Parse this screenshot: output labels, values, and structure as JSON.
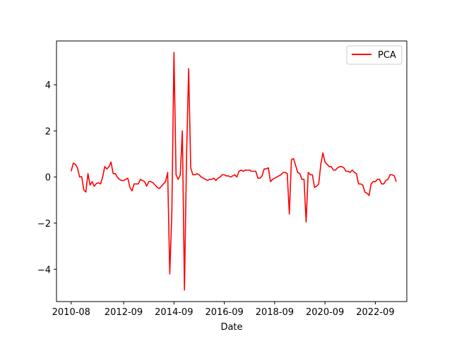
{
  "chart_data": {
    "type": "line",
    "title": "",
    "xlabel": "Date",
    "ylabel": "",
    "x_ticks": [
      "2010-08",
      "2012-09",
      "2014-09",
      "2016-09",
      "2018-09",
      "2020-09",
      "2022-09"
    ],
    "y_ticks": [
      "−4",
      "−2",
      "0",
      "2",
      "4"
    ],
    "y_tick_values": [
      -4,
      -2,
      0,
      2,
      4
    ],
    "xlim": [
      "2010-01",
      "2023-12"
    ],
    "ylim": [
      -5.4,
      5.9
    ],
    "grid": false,
    "legend_position": "top-right",
    "series": [
      {
        "name": "PCA",
        "color": "#ff0000",
        "points": [
          [
            "2010-08",
            0.25
          ],
          [
            "2010-09",
            0.6
          ],
          [
            "2010-10",
            0.55
          ],
          [
            "2010-11",
            0.4
          ],
          [
            "2010-12",
            0.0
          ],
          [
            "2011-01",
            0.02
          ],
          [
            "2011-02",
            -0.55
          ],
          [
            "2011-03",
            -0.65
          ],
          [
            "2011-04",
            0.15
          ],
          [
            "2011-05",
            -0.35
          ],
          [
            "2011-06",
            -0.2
          ],
          [
            "2011-07",
            -0.4
          ],
          [
            "2011-08",
            -0.28
          ],
          [
            "2011-09",
            -0.25
          ],
          [
            "2011-10",
            -0.3
          ],
          [
            "2011-11",
            0.0
          ],
          [
            "2011-12",
            0.45
          ],
          [
            "2012-01",
            0.35
          ],
          [
            "2012-02",
            0.45
          ],
          [
            "2012-03",
            0.65
          ],
          [
            "2012-04",
            0.15
          ],
          [
            "2012-05",
            0.15
          ],
          [
            "2012-06",
            0.0
          ],
          [
            "2012-07",
            -0.1
          ],
          [
            "2012-08",
            -0.15
          ],
          [
            "2012-09",
            -0.15
          ],
          [
            "2012-10",
            -0.1
          ],
          [
            "2012-11",
            -0.05
          ],
          [
            "2012-12",
            -0.45
          ],
          [
            "2013-01",
            -0.6
          ],
          [
            "2013-02",
            -0.3
          ],
          [
            "2013-03",
            -0.3
          ],
          [
            "2013-04",
            -0.3
          ],
          [
            "2013-05",
            -0.1
          ],
          [
            "2013-06",
            -0.15
          ],
          [
            "2013-07",
            -0.2
          ],
          [
            "2013-08",
            -0.4
          ],
          [
            "2013-09",
            -0.2
          ],
          [
            "2013-10",
            -0.2
          ],
          [
            "2013-11",
            -0.25
          ],
          [
            "2013-12",
            -0.35
          ],
          [
            "2014-01",
            -0.45
          ],
          [
            "2014-02",
            -0.5
          ],
          [
            "2014-03",
            -0.4
          ],
          [
            "2014-04",
            -0.3
          ],
          [
            "2014-05",
            -0.2
          ],
          [
            "2014-06",
            0.2
          ],
          [
            "2014-07",
            -4.2
          ],
          [
            "2014-08",
            -1.5
          ],
          [
            "2014-09",
            5.4
          ],
          [
            "2014-10",
            0.1
          ],
          [
            "2014-11",
            -0.1
          ],
          [
            "2014-12",
            0.1
          ],
          [
            "2015-01",
            2.0
          ],
          [
            "2015-02",
            -4.9
          ],
          [
            "2015-03",
            0.9
          ],
          [
            "2015-04",
            4.7
          ],
          [
            "2015-05",
            0.4
          ],
          [
            "2015-06",
            0.1
          ],
          [
            "2015-07",
            0.1
          ],
          [
            "2015-08",
            0.15
          ],
          [
            "2015-09",
            0.1
          ],
          [
            "2015-10",
            0.0
          ],
          [
            "2015-11",
            -0.05
          ],
          [
            "2015-12",
            -0.1
          ],
          [
            "2016-01",
            -0.15
          ],
          [
            "2016-02",
            -0.1
          ],
          [
            "2016-03",
            -0.1
          ],
          [
            "2016-04",
            -0.05
          ],
          [
            "2016-05",
            -0.15
          ],
          [
            "2016-06",
            -0.05
          ],
          [
            "2016-07",
            0.0
          ],
          [
            "2016-08",
            0.1
          ],
          [
            "2016-09",
            0.1
          ],
          [
            "2016-10",
            0.05
          ],
          [
            "2016-11",
            0.05
          ],
          [
            "2016-12",
            0.0
          ],
          [
            "2017-01",
            0.05
          ],
          [
            "2017-02",
            0.1
          ],
          [
            "2017-03",
            0.0
          ],
          [
            "2017-04",
            0.25
          ],
          [
            "2017-05",
            0.3
          ],
          [
            "2017-06",
            0.25
          ],
          [
            "2017-07",
            0.3
          ],
          [
            "2017-08",
            0.3
          ],
          [
            "2017-09",
            0.3
          ],
          [
            "2017-10",
            0.25
          ],
          [
            "2017-11",
            0.25
          ],
          [
            "2017-12",
            0.25
          ],
          [
            "2018-01",
            -0.05
          ],
          [
            "2018-02",
            -0.05
          ],
          [
            "2018-03",
            0.05
          ],
          [
            "2018-04",
            0.35
          ],
          [
            "2018-05",
            0.35
          ],
          [
            "2018-06",
            0.4
          ],
          [
            "2018-07",
            -0.2
          ],
          [
            "2018-08",
            -0.1
          ],
          [
            "2018-09",
            -0.05
          ],
          [
            "2018-10",
            0.0
          ],
          [
            "2018-11",
            0.05
          ],
          [
            "2018-12",
            0.1
          ],
          [
            "2019-01",
            0.2
          ],
          [
            "2019-02",
            0.2
          ],
          [
            "2019-03",
            0.15
          ],
          [
            "2019-04",
            -1.6
          ],
          [
            "2019-05",
            0.75
          ],
          [
            "2019-06",
            0.8
          ],
          [
            "2019-07",
            0.5
          ],
          [
            "2019-08",
            0.2
          ],
          [
            "2019-09",
            0.15
          ],
          [
            "2019-10",
            -0.1
          ],
          [
            "2019-11",
            -0.1
          ],
          [
            "2019-12",
            -1.95
          ],
          [
            "2020-01",
            0.2
          ],
          [
            "2020-02",
            0.1
          ],
          [
            "2020-03",
            0.1
          ],
          [
            "2020-04",
            -0.45
          ],
          [
            "2020-05",
            -0.4
          ],
          [
            "2020-06",
            -0.3
          ],
          [
            "2020-07",
            0.55
          ],
          [
            "2020-08",
            1.05
          ],
          [
            "2020-09",
            0.65
          ],
          [
            "2020-10",
            0.55
          ],
          [
            "2020-11",
            0.45
          ],
          [
            "2020-12",
            0.45
          ],
          [
            "2021-01",
            0.3
          ],
          [
            "2021-02",
            0.3
          ],
          [
            "2021-03",
            0.4
          ],
          [
            "2021-04",
            0.45
          ],
          [
            "2021-05",
            0.45
          ],
          [
            "2021-06",
            0.4
          ],
          [
            "2021-07",
            0.25
          ],
          [
            "2021-08",
            0.25
          ],
          [
            "2021-09",
            0.2
          ],
          [
            "2021-10",
            0.3
          ],
          [
            "2021-11",
            0.2
          ],
          [
            "2021-12",
            0.15
          ],
          [
            "2022-01",
            -0.3
          ],
          [
            "2022-02",
            -0.3
          ],
          [
            "2022-03",
            -0.35
          ],
          [
            "2022-04",
            -0.65
          ],
          [
            "2022-05",
            -0.7
          ],
          [
            "2022-06",
            -0.8
          ],
          [
            "2022-07",
            -0.3
          ],
          [
            "2022-08",
            -0.2
          ],
          [
            "2022-09",
            -0.2
          ],
          [
            "2022-10",
            -0.1
          ],
          [
            "2022-11",
            -0.1
          ],
          [
            "2022-12",
            -0.3
          ],
          [
            "2023-01",
            -0.3
          ],
          [
            "2023-02",
            -0.15
          ],
          [
            "2023-03",
            -0.1
          ],
          [
            "2023-04",
            0.1
          ],
          [
            "2023-05",
            0.1
          ],
          [
            "2023-06",
            0.05
          ],
          [
            "2023-07",
            -0.2
          ]
        ]
      }
    ]
  }
}
